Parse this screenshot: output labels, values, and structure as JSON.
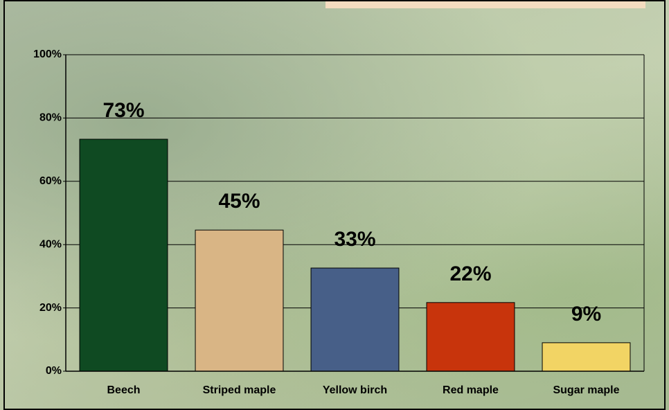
{
  "chart_data": {
    "type": "bar",
    "categories": [
      "Beech",
      "Striped maple",
      "Yellow birch",
      "Red maple",
      "Sugar maple"
    ],
    "values": [
      73.3,
      44.6,
      32.6,
      21.7,
      9
    ],
    "value_labels": [
      "73%",
      "45%",
      "33%",
      "22%",
      "9%"
    ],
    "colors": [
      "#0f4a22",
      "#d9b585",
      "#475f88",
      "#c8340c",
      "#f2d464"
    ],
    "ylim": [
      0,
      100
    ],
    "yticks": [
      {
        "value": 0,
        "label": "0%"
      },
      {
        "value": 20,
        "label": "20%"
      },
      {
        "value": 40,
        "label": "40%"
      },
      {
        "value": 60,
        "label": "60%"
      },
      {
        "value": 80,
        "label": "80%"
      },
      {
        "value": 100,
        "label": "100%"
      }
    ],
    "grid": true
  }
}
